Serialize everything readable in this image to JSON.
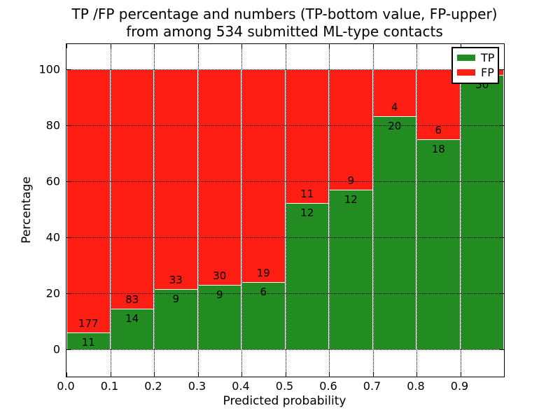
{
  "figure": {
    "title_line1": "TP /FP percentage and numbers (TP-bottom value, FP-upper)",
    "title_line2": "from among 534 submitted ML-type contacts",
    "xlabel": "Predicted probability",
    "ylabel": "Percentage"
  },
  "legend": {
    "position": "upper right",
    "items": [
      {
        "label": "TP",
        "color": "#228b22"
      },
      {
        "label": "FP",
        "color": "#ff1e14"
      }
    ]
  },
  "chart_data": {
    "type": "bar",
    "stacked": true,
    "title": "TP /FP percentage and numbers (TP-bottom value, FP-upper)\nfrom among 534 submitted ML-type contacts",
    "xlabel": "Predicted probability",
    "ylabel": "Percentage",
    "total_contacts": 534,
    "xlim": [
      0.0,
      1.0
    ],
    "ylim": [
      -9.75,
      109.0
    ],
    "grid": true,
    "y_ticks": [
      0,
      20,
      40,
      60,
      80,
      100
    ],
    "x_ticks": [
      {
        "value": 0.0,
        "label": "0.0"
      },
      {
        "value": 0.1,
        "label": "0.1"
      },
      {
        "value": 0.2,
        "label": "0.2"
      },
      {
        "value": 0.3,
        "label": "0.3"
      },
      {
        "value": 0.4,
        "label": "0.4"
      },
      {
        "value": 0.5,
        "label": "0.5"
      },
      {
        "value": 0.6,
        "label": "0.6"
      },
      {
        "value": 0.7,
        "label": "0.7"
      },
      {
        "value": 0.8,
        "label": "0.8"
      },
      {
        "value": 0.9,
        "label": "0.9"
      }
    ],
    "bin_edges": [
      0.0,
      0.1,
      0.2,
      0.3,
      0.4,
      0.5,
      0.6,
      0.7,
      0.8,
      0.9,
      1.0
    ],
    "series": [
      {
        "name": "TP",
        "color": "#228b22",
        "counts": [
          11,
          14,
          9,
          9,
          6,
          12,
          12,
          20,
          18,
          50
        ],
        "values_pct": [
          5.9,
          14.4,
          21.4,
          23.1,
          24.0,
          52.2,
          57.1,
          83.3,
          75.0,
          98.0
        ]
      },
      {
        "name": "FP",
        "color": "#ff1e14",
        "counts": [
          177,
          83,
          33,
          30,
          19,
          11,
          9,
          4,
          6,
          null
        ],
        "values_pct": [
          94.1,
          85.6,
          78.6,
          76.9,
          76.0,
          47.8,
          42.9,
          16.7,
          25.0,
          2.0
        ]
      }
    ]
  }
}
